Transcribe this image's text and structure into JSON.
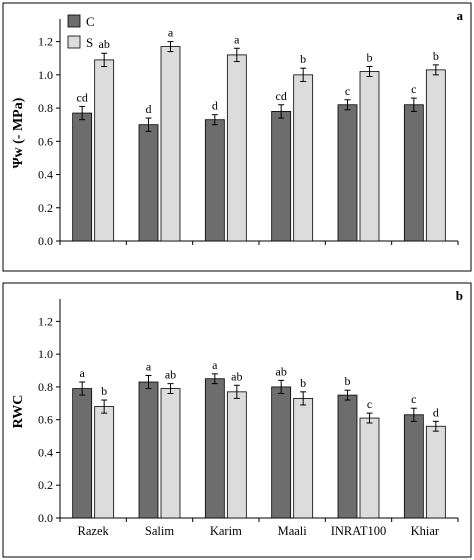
{
  "chart_data": [
    {
      "type": "bar",
      "panel_label": "a",
      "ylabel": "Ψw (- MPa)",
      "ylim": [
        0,
        1.3
      ],
      "yticks": [
        "0.0",
        "0.2",
        "0.4",
        "0.6",
        "0.8",
        "1.0",
        "1.2"
      ],
      "ytick_values": [
        0,
        0.2,
        0.4,
        0.6,
        0.8,
        1.0,
        1.2
      ],
      "grid": false,
      "legend_position": "top-left",
      "categories": [
        "Razek",
        "Salim",
        "Karim",
        "Maali",
        "INRAT100",
        "Khiar"
      ],
      "series": [
        {
          "name": "C",
          "color": "#6d6d6d",
          "values": [
            0.77,
            0.7,
            0.73,
            0.78,
            0.82,
            0.82
          ],
          "errors": [
            0.04,
            0.04,
            0.03,
            0.04,
            0.03,
            0.04
          ],
          "labels": [
            "cd",
            "d",
            "d",
            "cd",
            "c",
            "c"
          ]
        },
        {
          "name": "S",
          "color": "#dcdcdc",
          "values": [
            1.09,
            1.17,
            1.12,
            1.0,
            1.02,
            1.03
          ],
          "errors": [
            0.04,
            0.03,
            0.04,
            0.04,
            0.03,
            0.03
          ],
          "labels": [
            "ab",
            "a",
            "a",
            "b",
            "b",
            "b"
          ]
        }
      ]
    },
    {
      "type": "bar",
      "panel_label": "b",
      "ylabel": "RWC",
      "ylim": [
        0,
        1.3
      ],
      "yticks": [
        "0.0",
        "0.2",
        "0.4",
        "0.6",
        "0.8",
        "1.0",
        "1.2"
      ],
      "ytick_values": [
        0,
        0.2,
        0.4,
        0.6,
        0.8,
        1.0,
        1.2
      ],
      "grid": false,
      "categories": [
        "Razek",
        "Salim",
        "Karim",
        "Maali",
        "INRAT100",
        "Khiar"
      ],
      "series": [
        {
          "name": "C",
          "color": "#6d6d6d",
          "values": [
            0.79,
            0.83,
            0.85,
            0.8,
            0.75,
            0.63
          ],
          "errors": [
            0.04,
            0.04,
            0.03,
            0.04,
            0.03,
            0.04
          ],
          "labels": [
            "a",
            "a",
            "a",
            "ab",
            "b",
            "c"
          ]
        },
        {
          "name": "S",
          "color": "#dcdcdc",
          "values": [
            0.68,
            0.79,
            0.77,
            0.73,
            0.61,
            0.56
          ],
          "errors": [
            0.04,
            0.03,
            0.04,
            0.04,
            0.03,
            0.03
          ],
          "labels": [
            "b",
            "ab",
            "ab",
            "b",
            "c",
            "d"
          ]
        }
      ]
    }
  ]
}
